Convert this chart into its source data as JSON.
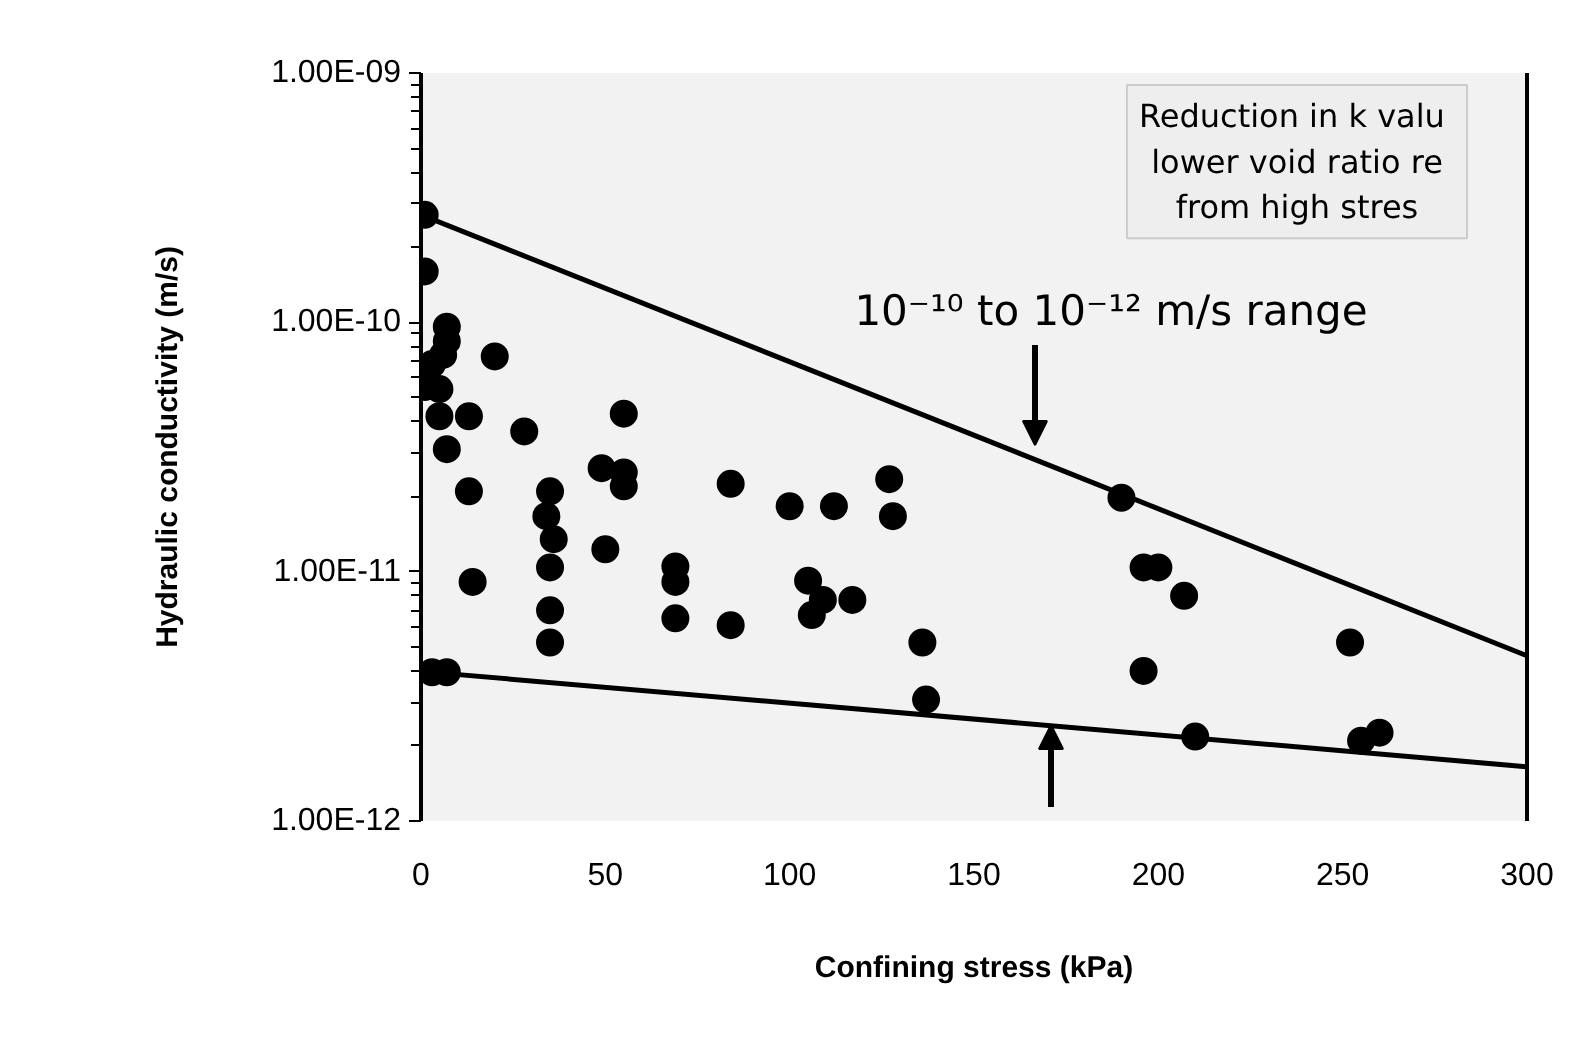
{
  "chart_data": {
    "type": "scatter",
    "xlabel": "Confining stress (kPa)",
    "ylabel": "Hydraulic conductivity (m/s)",
    "log": "y",
    "grid": false,
    "xlim": [
      0,
      300
    ],
    "xticks": [
      0,
      50,
      100,
      150,
      200,
      250,
      300
    ],
    "ylim": [
      1e-12,
      1e-09
    ],
    "yticks": [
      {
        "value": 1e-12,
        "label": "1.00E-12"
      },
      {
        "value": 1e-11,
        "label": "1.00E-11"
      },
      {
        "value": 1e-10,
        "label": "1.00E-10"
      },
      {
        "value": 1e-09,
        "label": "1.00E-09"
      }
    ],
    "annotations": [
      "10⁻¹⁰ to 10⁻¹² m/s range",
      "Reduction in  k valu\nlower void ratio re\nfrom high stres"
    ],
    "series": [
      {
        "marker": "circle",
        "color": "#000000",
        "x": [
          1,
          1,
          7,
          7,
          6,
          3,
          1,
          5,
          20,
          5,
          13,
          55,
          28,
          7,
          49,
          55,
          55,
          84,
          13,
          35,
          34,
          36,
          35,
          50,
          69,
          69,
          14,
          35,
          69,
          84,
          35,
          7,
          3,
          127,
          128,
          100,
          112,
          190,
          105,
          109,
          117,
          106,
          136,
          137,
          196,
          200,
          207,
          196,
          210,
          252,
          255,
          260
        ],
        "values": [
          2.7e-10,
          1.6e-10,
          9.6e-11,
          8.4e-11,
          7.4e-11,
          6.8e-11,
          5.5e-11,
          5.4e-11,
          7.3e-11,
          4.2e-11,
          4.2e-11,
          4.3e-11,
          3.65e-11,
          3.1e-11,
          2.6e-11,
          2.5e-11,
          2.2e-11,
          2.25e-11,
          2.1e-11,
          2.1e-11,
          1.67e-11,
          1.35e-11,
          1.04e-11,
          1.23e-11,
          1.05e-11,
          9.1e-12,
          9.1e-12,
          7e-12,
          6.5e-12,
          6.1e-12,
          5.2e-12,
          3.95e-12,
          3.95e-12,
          2.35e-11,
          1.67e-11,
          1.83e-11,
          1.83e-11,
          1.98e-11,
          9.2e-12,
          7.7e-12,
          7.7e-12,
          6.7e-12,
          5.2e-12,
          3.07e-12,
          1.04e-11,
          1.04e-11,
          8e-12,
          4e-12,
          2.18e-12,
          5.2e-12,
          2.1e-12,
          2.26e-12
        ]
      },
      {
        "type": "line",
        "color": "#000000",
        "x": [
          0,
          300
        ],
        "values": [
          2.7e-10,
          4.6e-12
        ]
      },
      {
        "type": "line",
        "color": "#000000",
        "x": [
          7,
          300
        ],
        "values": [
          3.9e-12,
          1.65e-12
        ]
      }
    ]
  }
}
